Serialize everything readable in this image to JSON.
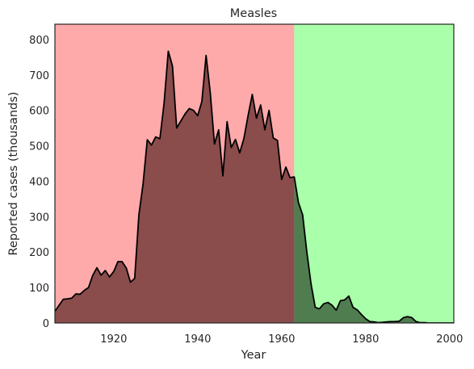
{
  "chart_data": {
    "type": "area",
    "title": "Measles",
    "xlabel": "Year",
    "ylabel": "Reported cases (thousands)",
    "xlim": [
      1906,
      2001
    ],
    "ylim": [
      0,
      843
    ],
    "xticks": [
      1920,
      1940,
      1960,
      1980,
      2000
    ],
    "yticks": [
      0,
      100,
      200,
      300,
      400,
      500,
      600,
      700,
      800
    ],
    "grid": false,
    "legend": "none",
    "regions": [
      {
        "x_start": 1906,
        "x_end": 1963,
        "color": "#ffaaaa"
      },
      {
        "x_start": 1963,
        "x_end": 2001,
        "color": "#aaffaa"
      }
    ],
    "fill_color": "#8b4c4c",
    "fill_color_after": "#4f7d4f",
    "line_color": "#000000",
    "series": [
      {
        "x": [
          1906,
          1907,
          1908,
          1909,
          1910,
          1911,
          1912,
          1913,
          1914,
          1915,
          1916,
          1917,
          1918,
          1919,
          1920,
          1921,
          1922,
          1923,
          1924,
          1925,
          1926,
          1927,
          1928,
          1929,
          1930,
          1931,
          1932,
          1933,
          1934,
          1935,
          1936,
          1937,
          1938,
          1939,
          1940,
          1941,
          1942,
          1943,
          1944,
          1945,
          1946,
          1947,
          1948,
          1949,
          1950,
          1951,
          1952,
          1953,
          1954,
          1955,
          1956,
          1957,
          1958,
          1959,
          1960,
          1961,
          1962,
          1963,
          1964,
          1965,
          1966,
          1967,
          1968,
          1969,
          1970,
          1971,
          1972,
          1973,
          1974,
          1975,
          1976,
          1977,
          1978,
          1979,
          1980,
          1981,
          1982,
          1983,
          1984,
          1985,
          1986,
          1987,
          1988,
          1989,
          1990,
          1991,
          1992,
          1993,
          1994,
          1995,
          1996,
          1997,
          1998,
          1999,
          2000,
          2001
        ],
        "y": [
          33,
          50,
          67,
          68,
          70,
          82,
          81,
          92,
          100,
          134,
          156,
          135,
          148,
          130,
          145,
          173,
          173,
          155,
          115,
          126,
          305,
          393,
          517,
          502,
          525,
          520,
          620,
          767,
          725,
          550,
          570,
          590,
          605,
          600,
          585,
          625,
          755,
          650,
          505,
          545,
          415,
          568,
          495,
          518,
          480,
          520,
          585,
          645,
          578,
          615,
          545,
          600,
          522,
          515,
          405,
          440,
          410,
          412,
          340,
          305,
          200,
          110,
          44,
          40,
          54,
          58,
          50,
          36,
          63,
          65,
          76,
          44,
          37,
          24,
          12,
          4,
          3,
          1,
          2,
          3,
          4,
          4,
          5,
          15,
          18,
          15,
          4,
          1,
          1,
          0,
          0,
          0,
          0,
          0,
          0,
          0
        ]
      }
    ]
  }
}
